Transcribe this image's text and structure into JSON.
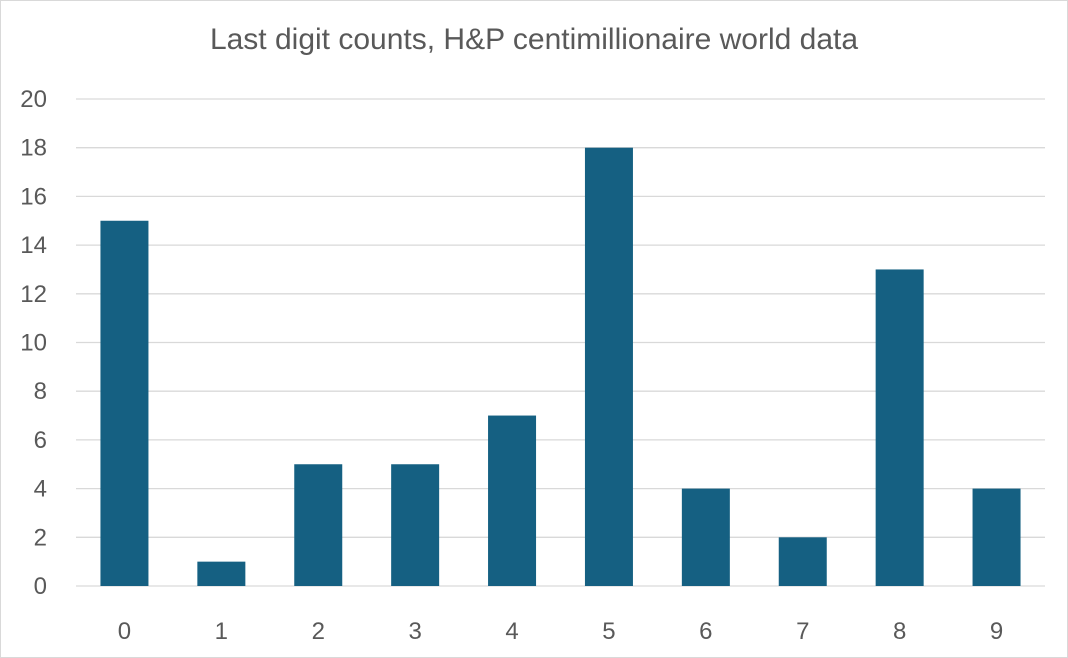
{
  "chart_data": {
    "type": "bar",
    "title": "Last digit counts, H&P centimillionaire world data",
    "xlabel": "",
    "ylabel": "",
    "categories": [
      "0",
      "1",
      "2",
      "3",
      "4",
      "5",
      "6",
      "7",
      "8",
      "9"
    ],
    "values": [
      15,
      1,
      5,
      5,
      7,
      18,
      4,
      2,
      13,
      4
    ],
    "ylim": [
      0,
      20
    ],
    "yticks": [
      "0",
      "2",
      "4",
      "6",
      "8",
      "10",
      "12",
      "14",
      "16",
      "18",
      "20"
    ],
    "grid": true,
    "legend": "none",
    "bar_color": "#156082",
    "grid_color": "#d9d9d9"
  }
}
